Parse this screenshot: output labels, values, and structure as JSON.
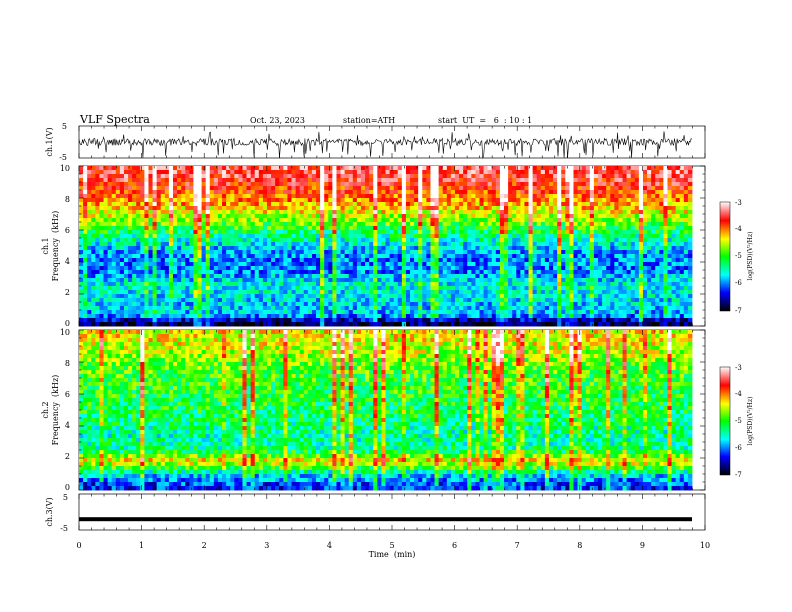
{
  "header": {
    "title": "VLF  Spectra",
    "date": "Oct. 23, 2023",
    "station": "station=ATH",
    "start": "start  UT  =   6  : 10 : 1"
  },
  "colorscale": {
    "label": "log(PSD)(V²/Hz)",
    "ticks": [
      "-3",
      "-4",
      "-5",
      "-6",
      "-7"
    ],
    "colors": [
      "#ffffff",
      "#ff0000",
      "#ffff00",
      "#00ff00",
      "#00ffff",
      "#0000ff",
      "#000000"
    ]
  },
  "chart_data": [
    {
      "type": "line",
      "panel": "ch1_waveform",
      "ylabel": "ch.1(V)",
      "yticks": [
        "5",
        "-5"
      ],
      "ylim": [
        -5,
        5
      ],
      "xlim": [
        0,
        10
      ],
      "description_values": "dense waveform, baseline near 0 V with spikes down to about -5 V"
    },
    {
      "type": "heatmap",
      "panel": "ch1_spectrogram",
      "ylabel_lines": [
        "ch.1",
        "Frequency  (kHz)"
      ],
      "yticks": [
        "10",
        "8",
        "6",
        "4",
        "2",
        "0"
      ],
      "ylim": [
        0,
        10
      ],
      "xlim": [
        0,
        10
      ],
      "zlim": [
        -7,
        -3
      ],
      "profile": [
        {
          "f": 9.5,
          "level": -3.5
        },
        {
          "f": 8.5,
          "level": -3.8
        },
        {
          "f": 7.5,
          "level": -4.2
        },
        {
          "f": 6.5,
          "level": -4.8
        },
        {
          "f": 5.5,
          "level": -5.4
        },
        {
          "f": 4.5,
          "level": -5.9
        },
        {
          "f": 3.5,
          "level": -6.0
        },
        {
          "f": 2.5,
          "level": -5.5
        },
        {
          "f": 1.5,
          "level": -5.7
        },
        {
          "f": 0.7,
          "level": -5.8
        },
        {
          "f": 0.2,
          "level": -6.8
        }
      ]
    },
    {
      "type": "heatmap",
      "panel": "ch2_spectrogram",
      "ylabel_lines": [
        "ch.2",
        "Frequency  (kHz)"
      ],
      "yticks": [
        "10",
        "8",
        "6",
        "4",
        "2",
        "0"
      ],
      "ylim": [
        0,
        10
      ],
      "xlim": [
        0,
        10
      ],
      "zlim": [
        -7,
        -3
      ],
      "profile": [
        {
          "f": 9.5,
          "level": -4.4
        },
        {
          "f": 8.5,
          "level": -4.6
        },
        {
          "f": 7.5,
          "level": -4.9
        },
        {
          "f": 6.5,
          "level": -5.0
        },
        {
          "f": 5.5,
          "level": -5.1
        },
        {
          "f": 4.5,
          "level": -5.2
        },
        {
          "f": 3.5,
          "level": -5.4
        },
        {
          "f": 2.5,
          "level": -5.3
        },
        {
          "f": 1.8,
          "level": -4.3
        },
        {
          "f": 1.0,
          "level": -5.6
        },
        {
          "f": 0.3,
          "level": -6.2
        }
      ]
    },
    {
      "type": "line",
      "panel": "ch3_waveform",
      "ylabel": "ch.3(V)",
      "yticks": [
        "5",
        "-5"
      ],
      "ylim": [
        -5,
        5
      ],
      "xlim": [
        0,
        10
      ],
      "xlabel": "Time  (min)",
      "xticks": [
        "0",
        "1",
        "2",
        "3",
        "4",
        "5",
        "6",
        "7",
        "8",
        "9",
        "10"
      ],
      "description_values": "nearly flat trace at about -2 V"
    }
  ]
}
